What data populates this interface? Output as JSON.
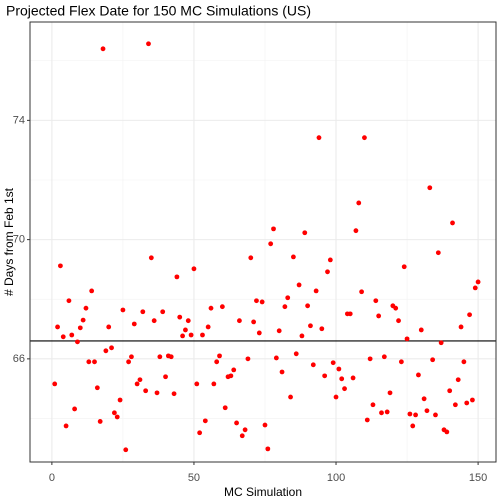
{
  "chart_data": {
    "type": "scatter",
    "title": "Projected Flex Date for 150 MC Simulations (US)",
    "xlabel": "MC Simulation",
    "ylabel": "# Days from Feb 1st",
    "color": "#ff0000",
    "xlim": [
      -7.7,
      156.3
    ],
    "ylim": [
      62.54,
      77.3
    ],
    "xticks": [
      0,
      50,
      100,
      150
    ],
    "yticks": [
      66,
      70,
      74
    ],
    "xminorticks": [
      25,
      75,
      125
    ],
    "yminorticks": [
      64,
      68,
      72,
      76
    ],
    "grid": true,
    "hline": 66.6,
    "x": [
      1,
      2,
      3,
      4,
      5,
      6,
      7,
      8,
      9,
      10,
      11,
      12,
      13,
      14,
      15,
      16,
      17,
      18,
      19,
      20,
      21,
      22,
      23,
      24,
      25,
      26,
      27,
      28,
      29,
      30,
      31,
      32,
      33,
      34,
      35,
      36,
      37,
      38,
      39,
      40,
      41,
      42,
      43,
      44,
      45,
      46,
      47,
      48,
      49,
      50,
      51,
      52,
      53,
      54,
      55,
      56,
      57,
      58,
      59,
      60,
      61,
      62,
      63,
      64,
      65,
      66,
      67,
      68,
      69,
      70,
      71,
      72,
      73,
      74,
      75,
      76,
      77,
      78,
      79,
      80,
      81,
      82,
      83,
      84,
      85,
      86,
      87,
      88,
      89,
      90,
      91,
      92,
      93,
      94,
      95,
      96,
      97,
      98,
      99,
      100,
      101,
      102,
      103,
      104,
      105,
      106,
      107,
      108,
      109,
      110,
      111,
      112,
      113,
      114,
      115,
      116,
      117,
      118,
      119,
      120,
      121,
      122,
      123,
      124,
      125,
      126,
      127,
      128,
      129,
      130,
      131,
      132,
      133,
      134,
      135,
      136,
      137,
      138,
      139,
      140,
      141,
      142,
      143,
      144,
      145,
      146,
      147,
      148,
      149,
      150
    ],
    "values": [
      65.16,
      67.07,
      69.12,
      66.74,
      63.75,
      67.95,
      66.8,
      64.32,
      66.57,
      67.04,
      67.3,
      67.7,
      65.9,
      68.28,
      65.9,
      65.03,
      63.9,
      76.4,
      66.27,
      67.07,
      66.37,
      64.19,
      64.05,
      64.62,
      67.64,
      62.95,
      65.9,
      66.07,
      67.17,
      65.16,
      65.3,
      67.58,
      64.93,
      76.57,
      69.39,
      67.28,
      64.86,
      66.07,
      67.58,
      65.4,
      66.1,
      66.07,
      64.83,
      68.75,
      67.4,
      66.77,
      66.97,
      67.28,
      66.8,
      69.02,
      65.16,
      63.52,
      66.8,
      63.92,
      67.07,
      67.7,
      65.16,
      65.9,
      66.1,
      67.75,
      64.36,
      65.4,
      65.43,
      65.63,
      63.85,
      67.28,
      63.42,
      63.62,
      66.0,
      69.39,
      67.24,
      67.95,
      66.87,
      67.91,
      63.78,
      62.98,
      69.86,
      70.36,
      66.03,
      66.94,
      65.56,
      67.75,
      68.05,
      64.72,
      69.42,
      66.17,
      68.48,
      66.77,
      70.23,
      67.78,
      67.11,
      65.8,
      68.28,
      73.42,
      67.01,
      65.43,
      68.92,
      69.32,
      65.87,
      64.72,
      65.66,
      65.33,
      65.0,
      67.51,
      67.51,
      65.36,
      70.3,
      71.23,
      68.25,
      73.42,
      63.95,
      66.0,
      64.46,
      67.95,
      67.44,
      64.19,
      66.07,
      64.22,
      64.86,
      67.78,
      67.7,
      67.28,
      65.9,
      69.09,
      66.67,
      64.15,
      63.75,
      64.12,
      65.46,
      66.97,
      64.66,
      64.26,
      71.74,
      65.97,
      64.12,
      69.56,
      66.54,
      63.62,
      63.55,
      64.93,
      70.56,
      64.46,
      65.3,
      67.07,
      65.9,
      64.52,
      67.48,
      64.62,
      68.38,
      68.58
    ]
  }
}
